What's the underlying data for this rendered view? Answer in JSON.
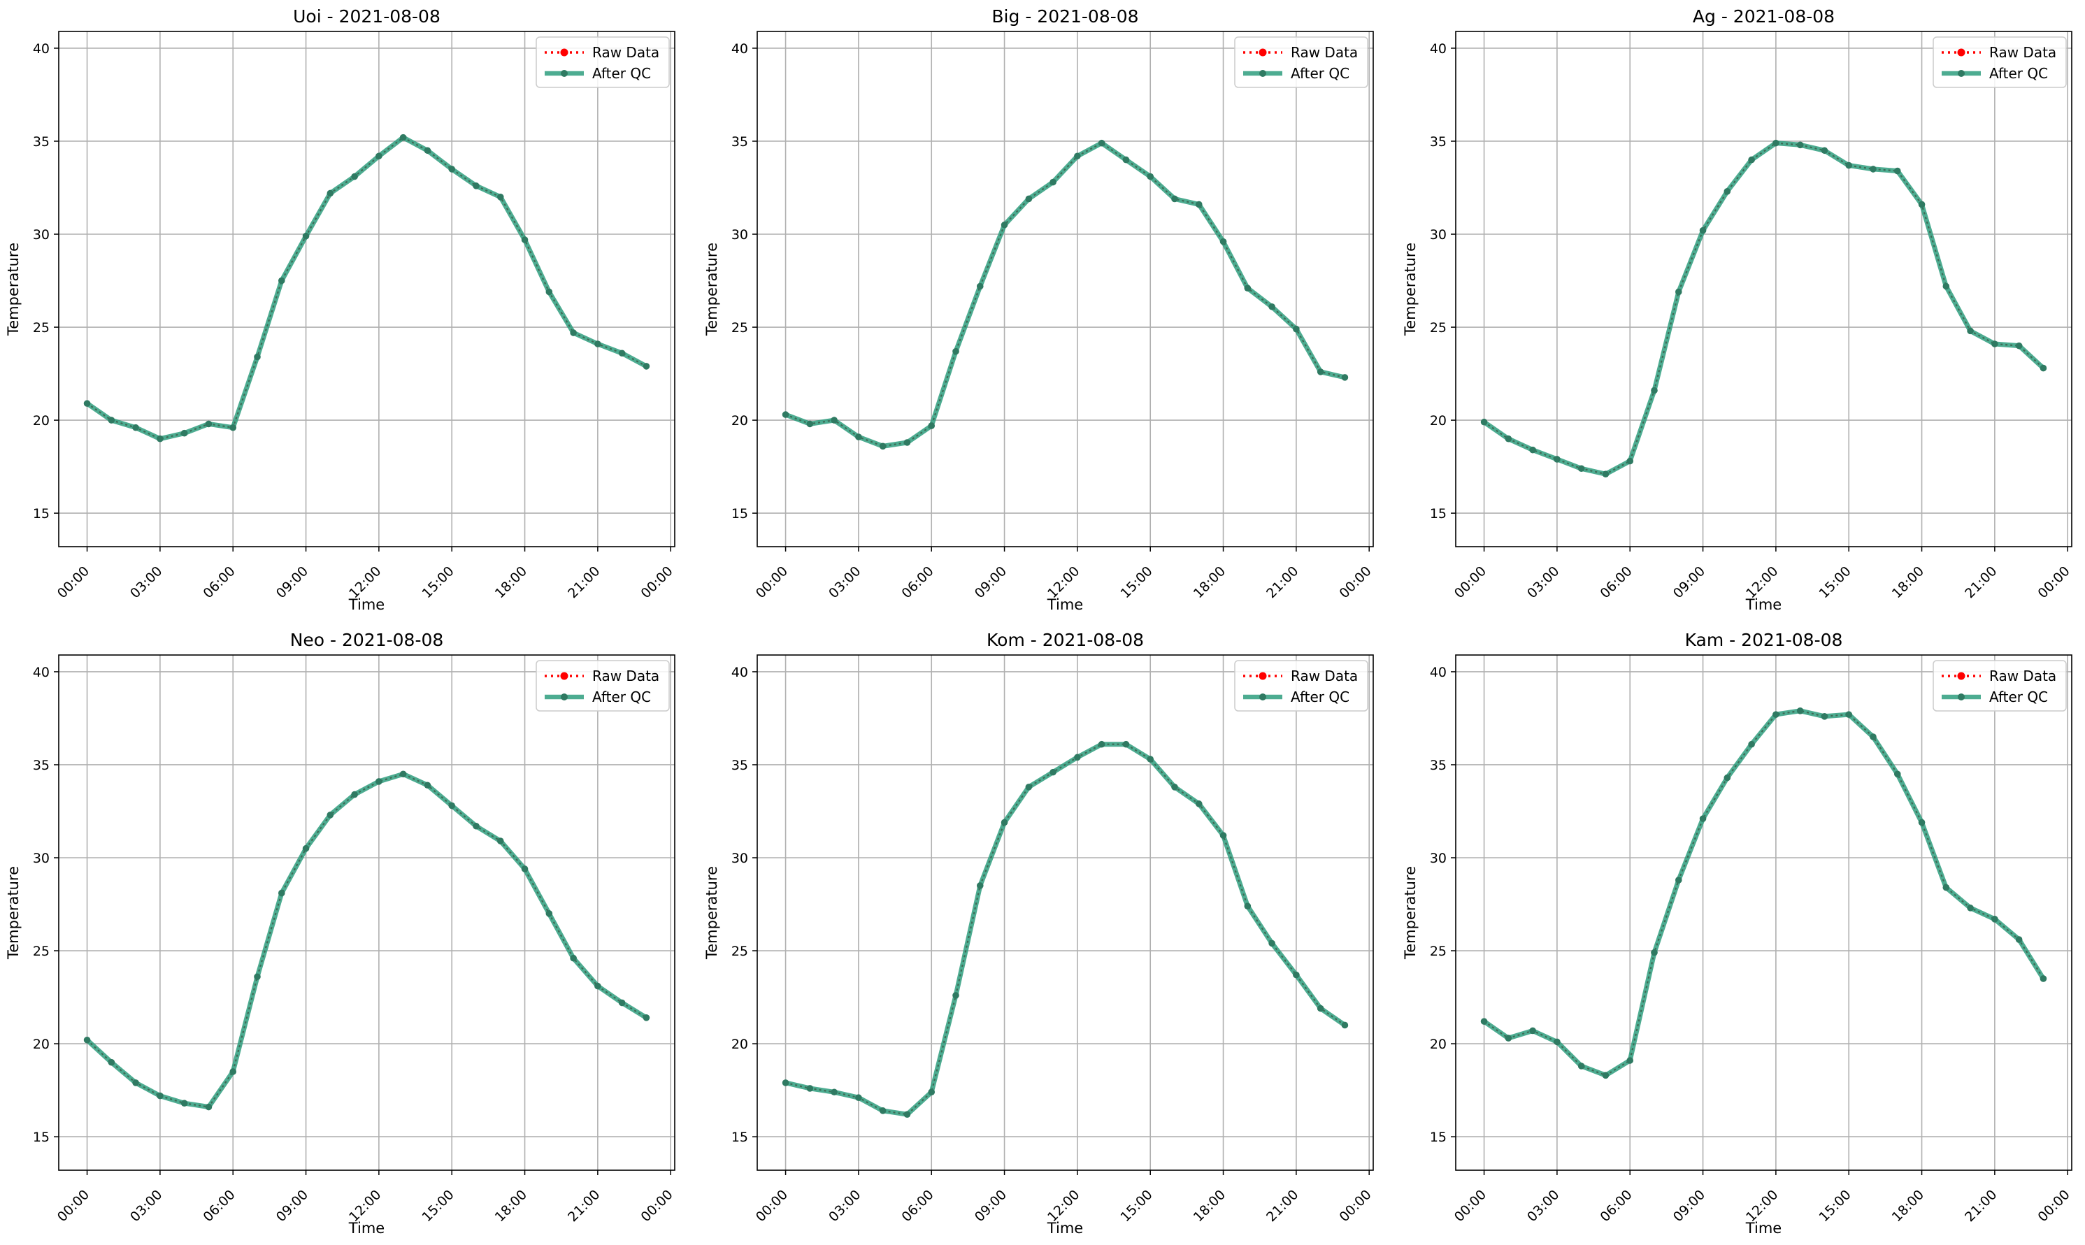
{
  "figure": {
    "xlabel": "Time",
    "ylabel": "Temperature",
    "legend": {
      "placement": "upper-right",
      "entries": [
        "Raw Data",
        "After QC"
      ]
    },
    "colors": {
      "raw": "#ff0000",
      "qc": "#2e9e7e",
      "marker": "#2f7a62",
      "grid": "#b0b0b0"
    },
    "x_ticks": [
      "00:00",
      "03:00",
      "06:00",
      "09:00",
      "12:00",
      "15:00",
      "18:00",
      "21:00",
      "00:00"
    ],
    "y_ticks": [
      "15",
      "20",
      "25",
      "30",
      "35",
      "40"
    ]
  },
  "chart_data": [
    {
      "type": "line",
      "title": "Uoi - 2021-08-08",
      "xlabel": "Time",
      "ylabel": "Temperature",
      "ylim": [
        13.2,
        40.9
      ],
      "xlim": [
        "2021-08-07 22:50",
        "2021-08-09 00:10"
      ],
      "grid": true,
      "legend": "upper-right",
      "x": [
        "00:00",
        "01:00",
        "02:00",
        "03:00",
        "04:00",
        "05:00",
        "06:00",
        "07:00",
        "08:00",
        "09:00",
        "10:00",
        "11:00",
        "12:00",
        "13:00",
        "14:00",
        "15:00",
        "16:00",
        "17:00",
        "18:00",
        "19:00",
        "20:00",
        "21:00",
        "22:00",
        "23:00"
      ],
      "series": [
        {
          "name": "Raw Data",
          "values": [
            20.9,
            20.0,
            19.6,
            19.0,
            19.3,
            19.8,
            19.6,
            23.4,
            27.5,
            29.9,
            32.2,
            33.1,
            34.2,
            35.2,
            34.5,
            33.5,
            32.6,
            32.0,
            29.7,
            26.9,
            24.7,
            24.1,
            23.6,
            22.9
          ]
        },
        {
          "name": "After QC",
          "values": [
            20.9,
            20.0,
            19.6,
            19.0,
            19.3,
            19.8,
            19.6,
            23.4,
            27.5,
            29.9,
            32.2,
            33.1,
            34.2,
            35.2,
            34.5,
            33.5,
            32.6,
            32.0,
            29.7,
            26.9,
            24.7,
            24.1,
            23.6,
            22.9
          ]
        }
      ]
    },
    {
      "type": "line",
      "title": "Big - 2021-08-08",
      "xlabel": "Time",
      "ylabel": "Temperature",
      "ylim": [
        13.2,
        40.9
      ],
      "xlim": [
        "2021-08-07 22:50",
        "2021-08-09 00:10"
      ],
      "grid": true,
      "legend": "upper-right",
      "x": [
        "00:00",
        "01:00",
        "02:00",
        "03:00",
        "04:00",
        "05:00",
        "06:00",
        "07:00",
        "08:00",
        "09:00",
        "10:00",
        "11:00",
        "12:00",
        "13:00",
        "14:00",
        "15:00",
        "16:00",
        "17:00",
        "18:00",
        "19:00",
        "20:00",
        "21:00",
        "22:00",
        "23:00"
      ],
      "series": [
        {
          "name": "Raw Data",
          "values": [
            20.3,
            19.8,
            20.0,
            19.1,
            18.6,
            18.8,
            19.7,
            23.7,
            27.2,
            30.5,
            31.9,
            32.8,
            34.2,
            34.9,
            34.0,
            33.1,
            31.9,
            31.6,
            29.6,
            27.1,
            26.1,
            24.9,
            22.6,
            22.3
          ]
        },
        {
          "name": "After QC",
          "values": [
            20.3,
            19.8,
            20.0,
            19.1,
            18.6,
            18.8,
            19.7,
            23.7,
            27.2,
            30.5,
            31.9,
            32.8,
            34.2,
            34.9,
            34.0,
            33.1,
            31.9,
            31.6,
            29.6,
            27.1,
            26.1,
            24.9,
            22.6,
            22.3
          ]
        }
      ]
    },
    {
      "type": "line",
      "title": "Ag - 2021-08-08",
      "xlabel": "Time",
      "ylabel": "Temperature",
      "ylim": [
        13.2,
        40.9
      ],
      "xlim": [
        "2021-08-07 22:50",
        "2021-08-09 00:10"
      ],
      "grid": true,
      "legend": "upper-right",
      "x": [
        "00:00",
        "01:00",
        "02:00",
        "03:00",
        "04:00",
        "05:00",
        "06:00",
        "07:00",
        "08:00",
        "09:00",
        "10:00",
        "11:00",
        "12:00",
        "13:00",
        "14:00",
        "15:00",
        "16:00",
        "17:00",
        "18:00",
        "19:00",
        "20:00",
        "21:00",
        "22:00",
        "23:00"
      ],
      "series": [
        {
          "name": "Raw Data",
          "values": [
            19.9,
            19.0,
            18.4,
            17.9,
            17.4,
            17.1,
            17.8,
            21.6,
            26.9,
            30.2,
            32.3,
            34.0,
            34.9,
            34.8,
            34.5,
            33.7,
            33.5,
            33.4,
            31.6,
            27.2,
            24.8,
            24.1,
            24.0,
            22.8
          ]
        },
        {
          "name": "After QC",
          "values": [
            19.9,
            19.0,
            18.4,
            17.9,
            17.4,
            17.1,
            17.8,
            21.6,
            26.9,
            30.2,
            32.3,
            34.0,
            34.9,
            34.8,
            34.5,
            33.7,
            33.5,
            33.4,
            31.6,
            27.2,
            24.8,
            24.1,
            24.0,
            22.8
          ]
        }
      ]
    },
    {
      "type": "line",
      "title": "Neo - 2021-08-08",
      "xlabel": "Time",
      "ylabel": "Temperature",
      "ylim": [
        13.2,
        40.9
      ],
      "xlim": [
        "2021-08-07 22:50",
        "2021-08-09 00:10"
      ],
      "grid": true,
      "legend": "upper-right",
      "x": [
        "00:00",
        "01:00",
        "02:00",
        "03:00",
        "04:00",
        "05:00",
        "06:00",
        "07:00",
        "08:00",
        "09:00",
        "10:00",
        "11:00",
        "12:00",
        "13:00",
        "14:00",
        "15:00",
        "16:00",
        "17:00",
        "18:00",
        "19:00",
        "20:00",
        "21:00",
        "22:00",
        "23:00"
      ],
      "series": [
        {
          "name": "Raw Data",
          "values": [
            20.2,
            19.0,
            17.9,
            17.2,
            16.8,
            16.6,
            18.5,
            23.6,
            28.1,
            30.5,
            32.3,
            33.4,
            34.1,
            34.5,
            33.9,
            32.8,
            31.7,
            30.9,
            29.4,
            27.0,
            24.6,
            23.1,
            22.2,
            21.4
          ]
        },
        {
          "name": "After QC",
          "values": [
            20.2,
            19.0,
            17.9,
            17.2,
            16.8,
            16.6,
            18.5,
            23.6,
            28.1,
            30.5,
            32.3,
            33.4,
            34.1,
            34.5,
            33.9,
            32.8,
            31.7,
            30.9,
            29.4,
            27.0,
            24.6,
            23.1,
            22.2,
            21.4
          ]
        }
      ]
    },
    {
      "type": "line",
      "title": "Kom - 2021-08-08",
      "xlabel": "Time",
      "ylabel": "Temperature",
      "ylim": [
        13.2,
        40.9
      ],
      "xlim": [
        "2021-08-07 22:50",
        "2021-08-09 00:10"
      ],
      "grid": true,
      "legend": "upper-right",
      "x": [
        "00:00",
        "01:00",
        "02:00",
        "03:00",
        "04:00",
        "05:00",
        "06:00",
        "07:00",
        "08:00",
        "09:00",
        "10:00",
        "11:00",
        "12:00",
        "13:00",
        "14:00",
        "15:00",
        "16:00",
        "17:00",
        "18:00",
        "19:00",
        "20:00",
        "21:00",
        "22:00",
        "23:00"
      ],
      "series": [
        {
          "name": "Raw Data",
          "values": [
            17.9,
            17.6,
            17.4,
            17.1,
            16.4,
            16.2,
            17.4,
            22.6,
            28.5,
            31.9,
            33.8,
            34.6,
            35.4,
            36.1,
            36.1,
            35.3,
            33.8,
            32.9,
            31.2,
            27.4,
            25.4,
            23.7,
            21.9,
            21.0
          ]
        },
        {
          "name": "After QC",
          "values": [
            17.9,
            17.6,
            17.4,
            17.1,
            16.4,
            16.2,
            17.4,
            22.6,
            28.5,
            31.9,
            33.8,
            34.6,
            35.4,
            36.1,
            36.1,
            35.3,
            33.8,
            32.9,
            31.2,
            27.4,
            25.4,
            23.7,
            21.9,
            21.0
          ]
        }
      ]
    },
    {
      "type": "line",
      "title": "Kam - 2021-08-08",
      "xlabel": "Time",
      "ylabel": "Temperature",
      "ylim": [
        13.2,
        40.9
      ],
      "xlim": [
        "2021-08-07 22:50",
        "2021-08-09 00:10"
      ],
      "grid": true,
      "legend": "upper-right",
      "x": [
        "00:00",
        "01:00",
        "02:00",
        "03:00",
        "04:00",
        "05:00",
        "06:00",
        "07:00",
        "08:00",
        "09:00",
        "10:00",
        "11:00",
        "12:00",
        "13:00",
        "14:00",
        "15:00",
        "16:00",
        "17:00",
        "18:00",
        "19:00",
        "20:00",
        "21:00",
        "22:00",
        "23:00"
      ],
      "series": [
        {
          "name": "Raw Data",
          "values": [
            21.2,
            20.3,
            20.7,
            20.1,
            18.8,
            18.3,
            19.1,
            24.9,
            28.8,
            32.1,
            34.3,
            36.1,
            37.7,
            37.9,
            37.6,
            37.7,
            36.5,
            34.5,
            31.9,
            28.4,
            27.3,
            26.7,
            25.6,
            23.5
          ]
        },
        {
          "name": "After QC",
          "values": [
            21.2,
            20.3,
            20.7,
            20.1,
            18.8,
            18.3,
            19.1,
            24.9,
            28.8,
            32.1,
            34.3,
            36.1,
            37.7,
            37.9,
            37.6,
            37.7,
            36.5,
            34.5,
            31.9,
            28.4,
            27.3,
            26.7,
            25.6,
            23.5
          ]
        }
      ]
    }
  ]
}
